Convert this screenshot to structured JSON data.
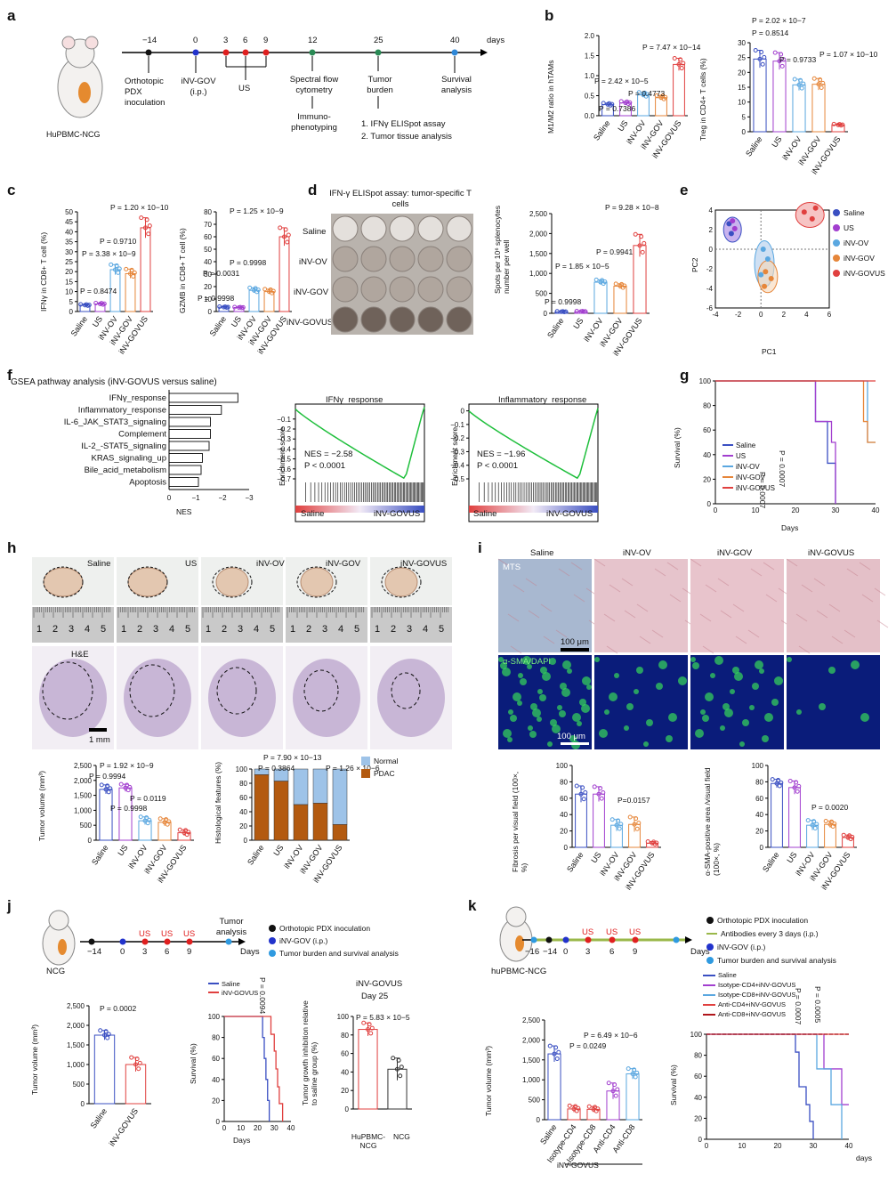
{
  "panels": {
    "a": {
      "label": "a",
      "mouse_label": "HuPBMC-NCG",
      "ticks": [
        "−14",
        "0",
        "3",
        "6",
        "9",
        "12",
        "25",
        "40"
      ],
      "unit": "days",
      "events": [
        "Orthotopic PDX inoculation",
        "iNV-GOV (i.p.)",
        "US",
        "Spectral flow cytometry",
        "Immuno-phenotyping",
        "Tumor burden",
        "1. IFNγ ELISpot assay",
        "2. Tumor tissue analysis",
        "Survival analysis"
      ]
    },
    "b": {
      "label": "b",
      "ylabel1": "M1/M2 ratio in hTAMs",
      "ylabel2": "Treg in CD4+ T cells (%)",
      "p1": [
        "P = 0.7386",
        "P = 2.42 × 10−5",
        "P = 0.4773",
        "P = 7.47 × 10−14"
      ],
      "p2": [
        "P = 2.02 × 10−7",
        "P = 0.8514",
        "P = 0.9733",
        "P = 1.07 × 10−10"
      ]
    },
    "c": {
      "label": "c",
      "ylabel1": "IFNγ in CD8+ T cell (%)",
      "ylabel2": "GZMB in CD8+ T cell (%)",
      "p1": [
        "P = 1.20 × 10−10",
        "P = 0.9710",
        "P = 3.38 × 10−9",
        "P = 0.8474"
      ],
      "p2": [
        "P = 1.25 × 10−9",
        "P = 0.9998",
        "P = 0.0031",
        "P = 0.9998"
      ]
    },
    "d": {
      "label": "d",
      "title": "IFN-γ ELISpot assay: tumor-specific T cells",
      "rows": [
        "Saline",
        "iNV-OV",
        "iNV-GOV",
        "iNV-GOVUS"
      ],
      "ylabel": "Spots per 10⁶ splenocytes number per well",
      "p": [
        "P = 9.28 × 10−8",
        "P = 0.9941",
        "P = 1.85 × 10−5",
        "P = 0.9998"
      ]
    },
    "e": {
      "label": "e",
      "xlabel": "PC1",
      "ylabel": "PC2",
      "legend": [
        "Saline",
        "US",
        "iNV-OV",
        "iNV-GOV",
        "iNV-GOVUS"
      ]
    },
    "f": {
      "label": "f",
      "title": "GSEA pathway analysis (iNV-GOVUS versus saline)",
      "pathways": [
        "IFNγ_response",
        "Inflammatory_response",
        "IL-6_JAK_STAT3_signaling",
        "Complement",
        "IL-2_-STAT5_signaling",
        "KRAS_signaling_up",
        "Bile_acid_metabolism",
        "Apoptosis"
      ],
      "xlabel": "NES",
      "es1_title": "IFNγ_response",
      "es1_nes": "NES = −2.58",
      "es1_p": "P < 0.0001",
      "es2_title": "Inflammatory_response",
      "es2_nes": "NES = −1.96",
      "es2_p": "P < 0.0001",
      "es_ylabel": "Enrichment score",
      "left": "Saline",
      "right": "iNV-GOVUS"
    },
    "g": {
      "label": "g",
      "ylabel": "Survival (%)",
      "xlabel": "Days",
      "legend": [
        "Saline",
        "US",
        "iNV-OV",
        "iNV-GOV",
        "iNV-GOVUS"
      ],
      "p": [
        "P = 0.0007",
        "P = 0.0007"
      ]
    },
    "h": {
      "label": "h",
      "groups": [
        "Saline",
        "US",
        "iNV-OV",
        "iNV-GOV",
        "iNV-GOVUS"
      ],
      "stain": "H&E",
      "scale": "1 mm",
      "ylabel1": "Tumor volume (mm³)",
      "ylabel2": "Histological features (%)",
      "p1": [
        "P = 1.92 × 10−9",
        "P = 0.9994",
        "P = 0.0119",
        "P = 0.9998"
      ],
      "p2": [
        "P = 7.90 × 10−13",
        "P = 0.3864",
        "P = 1.26 × 10−6"
      ],
      "legend": [
        "Normal",
        "PDAC"
      ]
    },
    "i": {
      "label": "i",
      "groups": [
        "Saline",
        "iNV-OV",
        "iNV-GOV",
        "iNV-GOVUS"
      ],
      "stain1": "MTS",
      "stain2": "α-SMA/DAPI",
      "scale": "100 μm",
      "ylabel1": "Fibrosis per visual field (100×, %)",
      "ylabel2": "α-SMA-positive area /visual field (100×, %)",
      "p1": "P=0.0157",
      "p2": "P = 0.0020"
    },
    "j": {
      "label": "j",
      "mouse_label": "NCG",
      "ticks": [
        "−14",
        "0",
        "3",
        "6",
        "9"
      ],
      "us": "US",
      "end": "Tumor analysis",
      "unit": "Days",
      "legend": [
        "Orthotopic PDX inoculation",
        "iNV-GOV (i.p.)",
        "Tumor burden and survival analysis"
      ],
      "ylabel1": "Tumor volume (mm³)",
      "p1": "P = 0.0002",
      "ylabel2": "Survival (%)",
      "p2": "P = 0.0094",
      "title3": "iNV-GOVUS",
      "sub3": "Day 25",
      "ylabel3": "Tumor growth inhibition relative to saline group (%)",
      "p3": "P = 5.83 × 10−5",
      "groups3": [
        "HuPBMC-NCG",
        "NCG"
      ]
    },
    "k": {
      "label": "k",
      "mouse_label": "huPBMC-NCG",
      "ticks": [
        "−16",
        "−14",
        "0",
        "3",
        "6",
        "9"
      ],
      "unit": "Days",
      "legend": [
        "Orthotopic PDX inoculation",
        "Antibodies every 3 days (i.p.)",
        "iNV-GOV (i.p.)",
        "Tumor burden and survival analysis"
      ],
      "ylabel1": "Tumor volume (mm³)",
      "p1": [
        "P = 6.49 × 10−6",
        "P = 0.0249"
      ],
      "groups": [
        "Saline",
        "Isotype-CD4",
        "Isotype-CD8",
        "Anti-CD4",
        "Anti-CD8"
      ],
      "bracket": "iNV-GOVUS",
      "surv_legend": [
        "Saline",
        "Isotype-CD4+iNV-GOVUS",
        "Isotype-CD8+iNV-GOVUS",
        "Anti-CD4+iNV-GOVUS",
        "Anti-CD8+iNV-GOVUS"
      ],
      "p2": [
        "P = 0.0007",
        "P = 0.0005"
      ],
      "ylabel2": "Survival (%)",
      "xlabel2": "days"
    }
  },
  "colors": {
    "saline": "#3a4fc2",
    "us": "#a23fcf",
    "ov": "#5aa7e0",
    "gov": "#e6863a",
    "govus": "#e0403f",
    "pdac": "#b35a10",
    "normal": "#9ec3e8"
  }
}
